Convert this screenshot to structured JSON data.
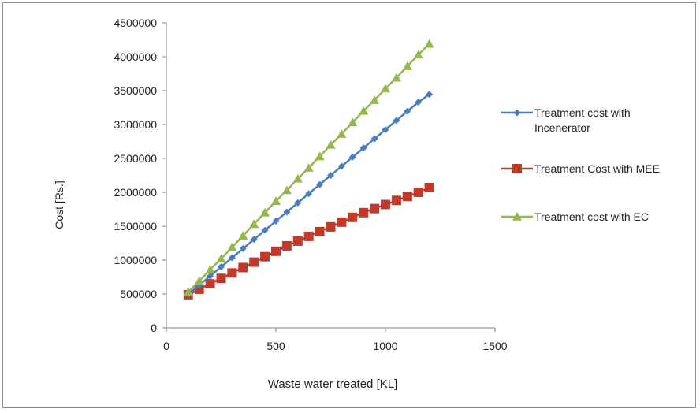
{
  "chart_data": {
    "type": "line",
    "xlabel": "Waste water treated [KL]",
    "ylabel": "Cost [Rs.]",
    "xlim": [
      0,
      1500
    ],
    "ylim": [
      0,
      4500000
    ],
    "x_ticks": [
      0,
      500,
      1000,
      1500
    ],
    "y_ticks": [
      0,
      500000,
      1000000,
      1500000,
      2000000,
      2500000,
      3000000,
      3500000,
      4000000,
      4500000
    ],
    "grid": false,
    "legend_position": "right",
    "x": [
      100,
      150,
      200,
      250,
      300,
      350,
      400,
      450,
      500,
      550,
      600,
      650,
      700,
      750,
      800,
      850,
      900,
      950,
      1000,
      1050,
      1100,
      1150,
      1200
    ],
    "series": [
      {
        "name": "Treatment cost with Incenerator",
        "legend_lines": [
          "Treatment cost with",
          "Incenerator"
        ],
        "color": "#4a7dbf",
        "marker": "diamond",
        "values": [
          495000,
          630000,
          765000,
          900000,
          1035000,
          1170000,
          1305000,
          1440000,
          1575000,
          1710000,
          1845000,
          1980000,
          2115000,
          2250000,
          2385000,
          2520000,
          2655000,
          2790000,
          2925000,
          3060000,
          3195000,
          3330000,
          3445000
        ]
      },
      {
        "name": "Treatment Cost with MEE",
        "legend_lines": [
          "Treatment Cost with MEE"
        ],
        "color": "#c0392b",
        "marker": "square",
        "values": [
          490000,
          570000,
          650000,
          730000,
          810000,
          890000,
          970000,
          1050000,
          1130000,
          1210000,
          1280000,
          1350000,
          1420000,
          1490000,
          1560000,
          1630000,
          1700000,
          1760000,
          1820000,
          1880000,
          1940000,
          2000000,
          2070000
        ]
      },
      {
        "name": "Treatment cost with EC",
        "legend_lines": [
          "Treatment cost with EC"
        ],
        "color": "#93b84e",
        "marker": "triangle",
        "values": [
          530000,
          690000,
          860000,
          1020000,
          1190000,
          1360000,
          1530000,
          1700000,
          1870000,
          2030000,
          2200000,
          2360000,
          2530000,
          2700000,
          2860000,
          3030000,
          3200000,
          3360000,
          3530000,
          3690000,
          3860000,
          4030000,
          4190000
        ]
      }
    ]
  }
}
